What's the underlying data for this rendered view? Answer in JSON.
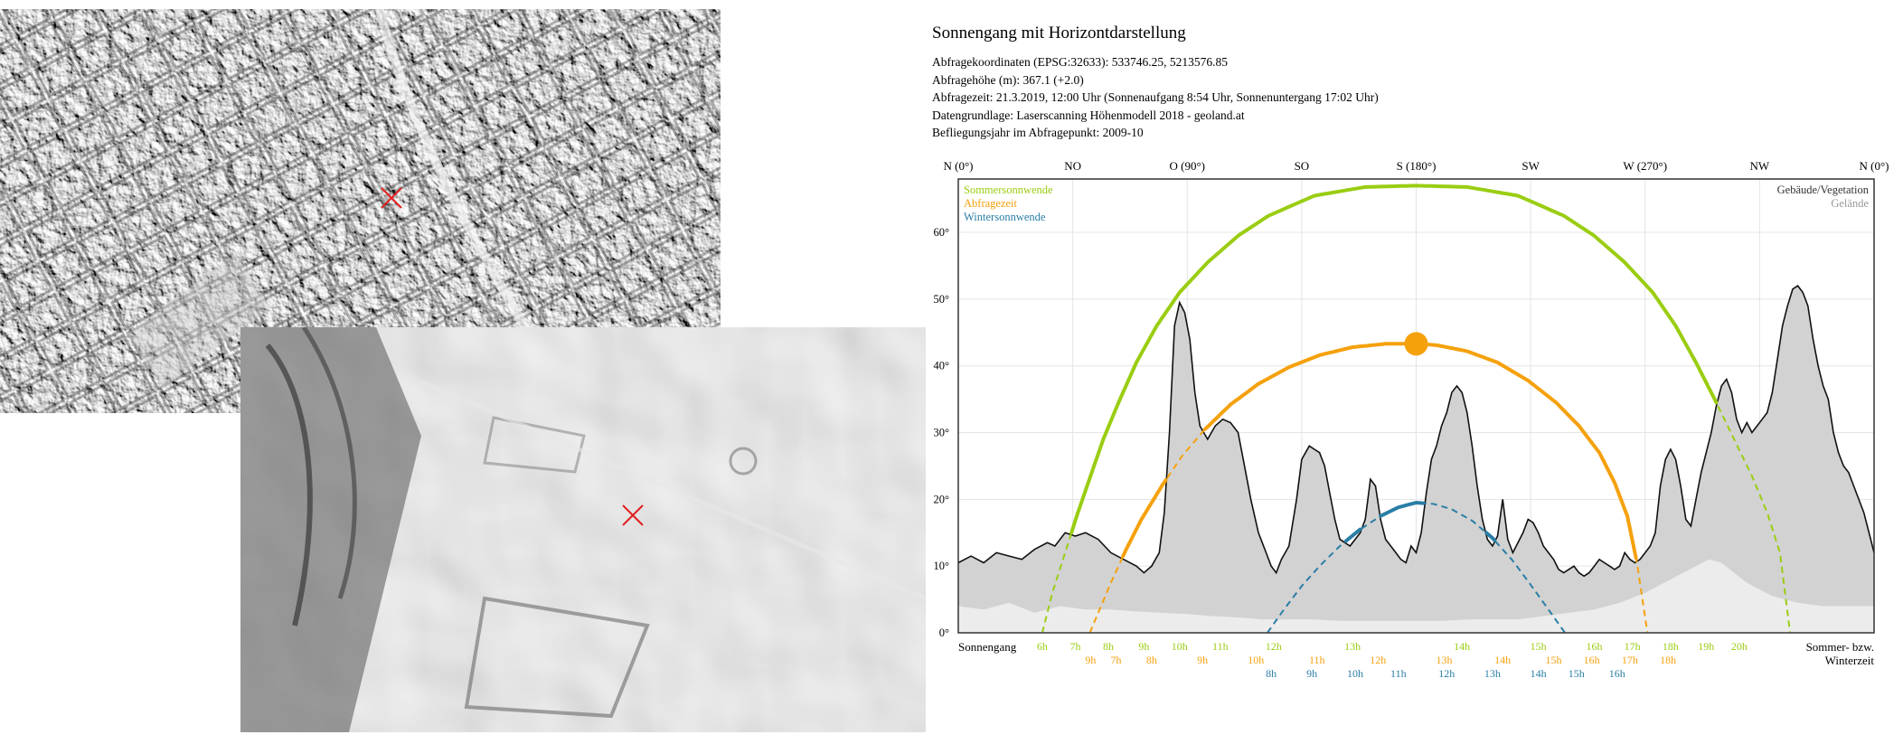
{
  "info": {
    "title": "Sonnengang mit Horizontdarstellung",
    "lines": [
      "Abfragekoordinaten (EPSG:32633): 533746.25, 5213576.85",
      "Abfragehöhe (m): 367.1 (+2.0)",
      "Abfragezeit: 21.3.2019, 12:00 Uhr (Sonnenaufgang 8:54 Uhr,  Sonnenuntergang 17:02 Uhr)",
      "Datengrundlage: Laserscanning Höhenmodell 2018 - geoland.at",
      "Befliegungsjahr im Abfragepunkt: 2009-10"
    ]
  },
  "colors": {
    "summer": "#9acd12",
    "query": "#f5a10d",
    "winter": "#2a7ea6",
    "buildings_fill": "#d2d2d2",
    "terrain_fill": "#ececec",
    "marker": "#e02020"
  },
  "maps": [
    {
      "name": "hillshade-surface-model",
      "marker": "query-point-marker"
    },
    {
      "name": "hillshade-terrain-model",
      "marker": "query-point-marker"
    }
  ],
  "chart_data": {
    "type": "line",
    "title": "",
    "xlim": [
      0,
      360
    ],
    "ylim": [
      0,
      68
    ],
    "yticks": [
      0,
      10,
      20,
      30,
      40,
      50,
      60
    ],
    "ytick_labels": [
      "0°",
      "10°",
      "20°",
      "30°",
      "40°",
      "50°",
      "60°"
    ],
    "top_directions": [
      {
        "az": 0,
        "label": "N (0°)"
      },
      {
        "az": 45,
        "label": "NO"
      },
      {
        "az": 90,
        "label": "O (90°)"
      },
      {
        "az": 135,
        "label": "SO"
      },
      {
        "az": 180,
        "label": "S (180°)"
      },
      {
        "az": 225,
        "label": "SW"
      },
      {
        "az": 270,
        "label": "W (270°)"
      },
      {
        "az": 315,
        "label": "NW"
      },
      {
        "az": 360,
        "label": "N (0°)"
      }
    ],
    "legend_left": [
      "Sommersonnwende",
      "Abfragezeit",
      "Wintersonnwende"
    ],
    "legend_right": [
      "Gebäude/Vegetation",
      "Gelände"
    ],
    "bottom_left_label": "Sonnengang",
    "bottom_right_label": [
      "Sommer- bzw.",
      "Winterzeit"
    ],
    "series": [
      {
        "name": "Sommersonnwende",
        "key": "summer",
        "x": [
          33,
          37,
          42,
          47,
          52,
          57,
          63,
          70,
          78,
          87,
          98,
          110,
          122,
          140,
          160,
          180,
          200,
          220,
          238,
          250,
          262,
          273,
          282,
          290,
          298,
          305,
          312,
          318,
          323,
          327
        ],
        "y": [
          0,
          6,
          12,
          18,
          23.5,
          29,
          34.5,
          40.5,
          46,
          51,
          55.5,
          59.5,
          62.5,
          65.5,
          66.8,
          67,
          66.8,
          65.5,
          62.5,
          59.5,
          55.5,
          51,
          46,
          40.5,
          34.5,
          29,
          23.5,
          18,
          12,
          0
        ]
      },
      {
        "name": "Abfragezeit",
        "key": "query",
        "x": [
          51.7,
          55,
          60,
          66,
          72,
          80,
          88,
          97,
          107,
          118,
          130,
          142,
          155,
          168,
          178,
          181,
          188,
          200,
          212,
          224,
          235,
          244,
          252,
          258,
          263,
          266.8,
          270.9
        ],
        "y": [
          0,
          3,
          7.5,
          12.5,
          17,
          22,
          26.5,
          30.5,
          34.2,
          37.3,
          39.8,
          41.6,
          42.8,
          43.3,
          43.3,
          43.3,
          43.1,
          42.2,
          40.5,
          37.8,
          34.5,
          31,
          27,
          22.5,
          17.5,
          10.5,
          0
        ]
      },
      {
        "name": "Wintersonnwende",
        "key": "winter",
        "x": [
          121.5,
          128,
          135,
          142,
          150,
          158,
          166,
          173,
          180,
          187,
          194,
          202,
          210,
          218,
          225,
          232,
          238.5
        ],
        "y": [
          0,
          3.5,
          7,
          10,
          13,
          15.5,
          17.5,
          18.8,
          19.5,
          19.3,
          18.5,
          16.8,
          14.2,
          10.8,
          7.2,
          3.5,
          0
        ]
      }
    ],
    "horizon_buildings": {
      "x": [
        0,
        5,
        10,
        15,
        20,
        25,
        30,
        35,
        38,
        42,
        46,
        50,
        55,
        60,
        65,
        70,
        73,
        76,
        79,
        81,
        83,
        85,
        87,
        89,
        91,
        93,
        95,
        98,
        101,
        104,
        107,
        110,
        112,
        115,
        118,
        121,
        123,
        125,
        127,
        130,
        133,
        135,
        138,
        140,
        142,
        144,
        146,
        148,
        150,
        152,
        154,
        156,
        158,
        160,
        162,
        164,
        166,
        168,
        170,
        172,
        174,
        176,
        178,
        180,
        182,
        184,
        186,
        188,
        190,
        192,
        194,
        196,
        198,
        200,
        202,
        204,
        206,
        208,
        210,
        212,
        214,
        216,
        218,
        220,
        222,
        224,
        226,
        228,
        230,
        232,
        234,
        236,
        238,
        240,
        242,
        244,
        246,
        248,
        250,
        252,
        254,
        256,
        258,
        260,
        262,
        264,
        266,
        268,
        270,
        272,
        274,
        276,
        278,
        280,
        282,
        284,
        286,
        288,
        290,
        292,
        294,
        296,
        298,
        300,
        302,
        304,
        306,
        308,
        310,
        312,
        314,
        316,
        318,
        320,
        322,
        324,
        326,
        328,
        330,
        332,
        334,
        336,
        338,
        340,
        342,
        344,
        346,
        348,
        350,
        352,
        354,
        356,
        358,
        360
      ],
      "y": [
        10.5,
        11.5,
        10.5,
        12,
        11.5,
        11,
        12.5,
        13.5,
        13,
        15,
        14.5,
        15,
        14,
        12,
        11,
        10,
        9,
        10,
        12,
        18,
        30,
        46,
        49.5,
        48,
        44,
        36,
        31,
        29,
        31,
        32,
        31.5,
        30,
        26,
        20,
        15,
        12,
        10,
        9,
        11,
        13,
        20,
        26,
        28,
        27.5,
        27,
        25,
        21,
        17,
        14,
        13.5,
        13,
        14,
        15,
        17,
        23,
        22,
        17,
        14,
        13,
        12,
        11,
        10.5,
        13,
        12,
        15,
        21,
        26,
        28,
        31,
        33,
        36,
        37,
        36,
        33,
        28,
        22,
        17,
        14,
        13,
        14.5,
        20,
        14,
        12,
        13.5,
        15,
        17,
        16.5,
        15,
        13,
        12,
        11,
        9.5,
        9,
        9.5,
        10,
        9,
        8.5,
        9,
        10,
        11,
        10.5,
        10,
        9.5,
        10,
        12,
        11,
        10.5,
        11,
        12,
        13,
        15,
        22,
        26,
        27.5,
        26,
        22,
        17,
        16,
        20,
        24,
        27,
        30,
        34,
        37,
        38,
        36,
        32,
        30,
        31.5,
        30,
        31,
        32,
        33,
        36,
        41,
        46,
        49,
        51.5,
        52,
        51,
        49,
        44,
        40,
        37,
        35,
        30,
        27,
        25,
        24,
        22,
        20,
        18,
        15,
        12
      ]
    },
    "horizon_terrain": {
      "x": [
        0,
        10,
        20,
        30,
        40,
        50,
        60,
        70,
        80,
        90,
        100,
        110,
        120,
        130,
        140,
        150,
        160,
        170,
        180,
        190,
        200,
        210,
        220,
        230,
        240,
        250,
        260,
        270,
        280,
        290,
        295,
        300,
        305,
        310,
        320,
        330,
        340,
        350,
        360
      ],
      "y": [
        4,
        3.5,
        4.5,
        3,
        4,
        3.5,
        3.5,
        3.2,
        3,
        2.8,
        2.5,
        2.3,
        2,
        2,
        2,
        1.8,
        1.8,
        1.8,
        1.8,
        1.8,
        2,
        2,
        2,
        2.5,
        3,
        3.5,
        4.5,
        6,
        8,
        10,
        11,
        10.5,
        9,
        7.5,
        5.5,
        4.5,
        4,
        4,
        4
      ]
    },
    "hour_label_rows": [
      {
        "key": "summer",
        "labels": [
          {
            "az": 33,
            "t": "6h"
          },
          {
            "az": 46,
            "t": "7h"
          },
          {
            "az": 59,
            "t": "8h"
          },
          {
            "az": 73,
            "t": "9h"
          },
          {
            "az": 87,
            "t": "10h"
          },
          {
            "az": 103,
            "t": "11h"
          },
          {
            "az": 124,
            "t": "12h"
          },
          {
            "az": 155,
            "t": "13h"
          },
          {
            "az": 198,
            "t": "14h"
          },
          {
            "az": 228,
            "t": "15h"
          },
          {
            "az": 250,
            "t": "16h"
          },
          {
            "az": 265,
            "t": "17h"
          },
          {
            "az": 280,
            "t": "18h"
          },
          {
            "az": 294,
            "t": "19h"
          },
          {
            "az": 307,
            "t": "20h"
          }
        ]
      },
      {
        "key": "query",
        "labels": [
          {
            "az": 52,
            "t": "9h"
          },
          {
            "az": 62,
            "t": "7h"
          },
          {
            "az": 76,
            "t": "8h"
          },
          {
            "az": 96,
            "t": "9h"
          },
          {
            "az": 117,
            "t": "10h"
          },
          {
            "az": 141,
            "t": "11h"
          },
          {
            "az": 165,
            "t": "12h"
          },
          {
            "az": 191,
            "t": "13h"
          },
          {
            "az": 214,
            "t": "14h"
          },
          {
            "az": 234,
            "t": "15h"
          },
          {
            "az": 249,
            "t": "16h"
          },
          {
            "az": 264,
            "t": "17h"
          },
          {
            "az": 279,
            "t": "18h"
          }
        ]
      },
      {
        "key": "winter",
        "labels": [
          {
            "az": 123,
            "t": "8h"
          },
          {
            "az": 139,
            "t": "9h"
          },
          {
            "az": 156,
            "t": "10h"
          },
          {
            "az": 173,
            "t": "11h"
          },
          {
            "az": 192,
            "t": "12h"
          },
          {
            "az": 210,
            "t": "13h"
          },
          {
            "az": 228,
            "t": "14h"
          },
          {
            "az": 243,
            "t": "15h"
          },
          {
            "az": 259,
            "t": "16h"
          }
        ]
      }
    ],
    "sun_position": {
      "az": 180,
      "alt": 43.3
    },
    "grid": true
  }
}
